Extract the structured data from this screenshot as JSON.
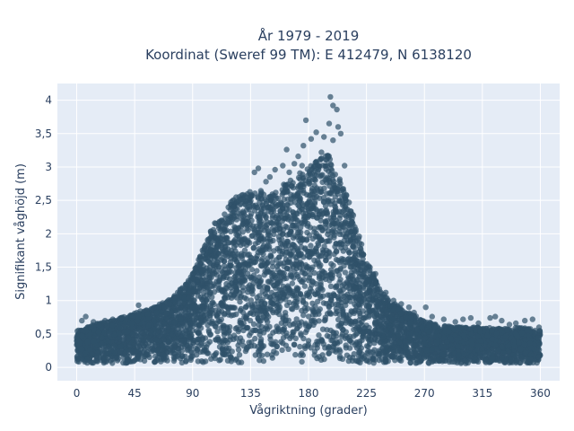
{
  "chart_data": {
    "type": "scatter",
    "title_lines": [
      "År 1979 - 2019",
      "Koordinat (Sweref 99 TM): E 412479, N 6138120"
    ],
    "xlabel": "Vågriktning (grader)",
    "ylabel": "Signifikant våghöjd (m)",
    "xlim": [
      -15,
      375
    ],
    "ylim": [
      -0.2,
      4.25
    ],
    "x_ticks": [
      0,
      45,
      90,
      135,
      180,
      225,
      270,
      315,
      360
    ],
    "x_tick_labels": [
      "0",
      "45",
      "90",
      "135",
      "180",
      "225",
      "270",
      "315",
      "360"
    ],
    "y_ticks": [
      0,
      0.5,
      1,
      1.5,
      2,
      2.5,
      3,
      3.5,
      4
    ],
    "y_tick_labels": [
      "0",
      "0,5",
      "1",
      "1,5",
      "2",
      "2,5",
      "3",
      "3,5",
      "4"
    ],
    "grid": true,
    "plot_background": "#e5ecf6",
    "grid_color": "#ffffff",
    "marker_color": "#2f5169",
    "marker_opacity": 0.7,
    "envelope": [
      {
        "x": 0,
        "y": 0.55
      },
      {
        "x": 15,
        "y": 0.65
      },
      {
        "x": 30,
        "y": 0.72
      },
      {
        "x": 45,
        "y": 0.82
      },
      {
        "x": 60,
        "y": 0.9
      },
      {
        "x": 75,
        "y": 1.05
      },
      {
        "x": 90,
        "y": 1.4
      },
      {
        "x": 105,
        "y": 2.1
      },
      {
        "x": 120,
        "y": 2.5
      },
      {
        "x": 135,
        "y": 2.7
      },
      {
        "x": 150,
        "y": 2.6
      },
      {
        "x": 165,
        "y": 2.8
      },
      {
        "x": 180,
        "y": 3.0
      },
      {
        "x": 195,
        "y": 3.2
      },
      {
        "x": 210,
        "y": 2.6
      },
      {
        "x": 225,
        "y": 1.6
      },
      {
        "x": 240,
        "y": 1.05
      },
      {
        "x": 255,
        "y": 0.85
      },
      {
        "x": 270,
        "y": 0.7
      },
      {
        "x": 285,
        "y": 0.62
      },
      {
        "x": 300,
        "y": 0.6
      },
      {
        "x": 315,
        "y": 0.6
      },
      {
        "x": 330,
        "y": 0.58
      },
      {
        "x": 345,
        "y": 0.6
      },
      {
        "x": 360,
        "y": 0.55
      }
    ],
    "outliers": [
      {
        "x": 197,
        "y": 4.05
      },
      {
        "x": 199,
        "y": 3.92
      },
      {
        "x": 202,
        "y": 3.86
      },
      {
        "x": 178,
        "y": 3.7
      },
      {
        "x": 186,
        "y": 3.52
      },
      {
        "x": 192,
        "y": 3.45
      },
      {
        "x": 196,
        "y": 3.65
      },
      {
        "x": 203,
        "y": 3.6
      },
      {
        "x": 205,
        "y": 3.5
      },
      {
        "x": 176,
        "y": 3.32
      },
      {
        "x": 182,
        "y": 3.42
      },
      {
        "x": 199,
        "y": 3.4
      },
      {
        "x": 163,
        "y": 3.26
      },
      {
        "x": 172,
        "y": 3.16
      },
      {
        "x": 186,
        "y": 3.08
      },
      {
        "x": 190,
        "y": 3.22
      },
      {
        "x": 208,
        "y": 3.02
      },
      {
        "x": 169,
        "y": 3.05
      },
      {
        "x": 154,
        "y": 2.96
      },
      {
        "x": 160,
        "y": 3.02
      },
      {
        "x": 141,
        "y": 2.98
      },
      {
        "x": 138,
        "y": 2.92
      },
      {
        "x": 150,
        "y": 2.85
      },
      {
        "x": 147,
        "y": 2.78
      },
      {
        "x": 175,
        "y": 3.02
      },
      {
        "x": 165,
        "y": 2.92
      },
      {
        "x": 96,
        "y": 1.55
      },
      {
        "x": 100,
        "y": 1.62
      },
      {
        "x": 92,
        "y": 1.48
      },
      {
        "x": 103,
        "y": 1.42
      },
      {
        "x": 84,
        "y": 1.18
      },
      {
        "x": 80,
        "y": 1.12
      },
      {
        "x": 76,
        "y": 1.02
      },
      {
        "x": 72,
        "y": 0.95
      },
      {
        "x": 68,
        "y": 0.9
      },
      {
        "x": 62,
        "y": 0.82
      },
      {
        "x": 55,
        "y": 0.8
      },
      {
        "x": 48,
        "y": 0.93
      },
      {
        "x": 42,
        "y": 0.78
      },
      {
        "x": 35,
        "y": 0.74
      },
      {
        "x": 28,
        "y": 0.72
      },
      {
        "x": 22,
        "y": 0.7
      },
      {
        "x": 13,
        "y": 0.68
      },
      {
        "x": 7,
        "y": 0.76
      },
      {
        "x": 4,
        "y": 0.7
      },
      {
        "x": 232,
        "y": 1.4
      },
      {
        "x": 240,
        "y": 1.12
      },
      {
        "x": 246,
        "y": 1.0
      },
      {
        "x": 252,
        "y": 0.95
      },
      {
        "x": 258,
        "y": 0.9
      },
      {
        "x": 262,
        "y": 0.82
      },
      {
        "x": 271,
        "y": 0.9
      },
      {
        "x": 276,
        "y": 0.76
      },
      {
        "x": 285,
        "y": 0.72
      },
      {
        "x": 294,
        "y": 0.68
      },
      {
        "x": 300,
        "y": 0.72
      },
      {
        "x": 306,
        "y": 0.74
      },
      {
        "x": 312,
        "y": 0.66
      },
      {
        "x": 321,
        "y": 0.74
      },
      {
        "x": 325,
        "y": 0.76
      },
      {
        "x": 330,
        "y": 0.7
      },
      {
        "x": 336,
        "y": 0.64
      },
      {
        "x": 341,
        "y": 0.66
      },
      {
        "x": 348,
        "y": 0.7
      },
      {
        "x": 354,
        "y": 0.72
      },
      {
        "x": 359,
        "y": 0.6
      }
    ]
  }
}
